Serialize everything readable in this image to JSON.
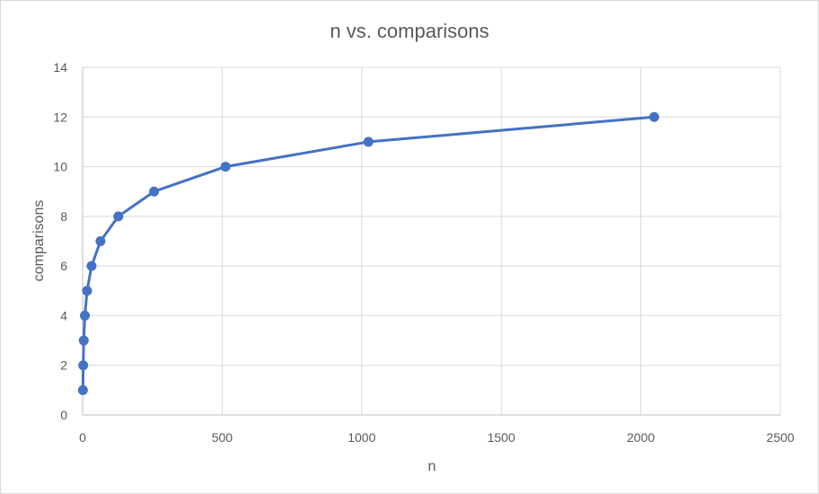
{
  "chart_data": {
    "type": "scatter",
    "title": "n vs. comparisons",
    "xlabel": "n",
    "ylabel": "comparisons",
    "xlim": [
      0,
      2500
    ],
    "ylim": [
      0,
      14
    ],
    "x_ticks": [
      "0",
      "500",
      "1000",
      "1500",
      "2000",
      "2500"
    ],
    "y_ticks": [
      "0",
      "2",
      "4",
      "6",
      "8",
      "10",
      "12",
      "14"
    ],
    "grid": true,
    "series": [
      {
        "x": [
          1,
          2,
          4,
          8,
          16,
          32,
          64,
          128,
          256,
          512,
          1024,
          2048
        ],
        "y": [
          1,
          2,
          3,
          4,
          5,
          6,
          7,
          8,
          9,
          10,
          11,
          12
        ],
        "color": "#4472c4",
        "line": true
      }
    ]
  }
}
